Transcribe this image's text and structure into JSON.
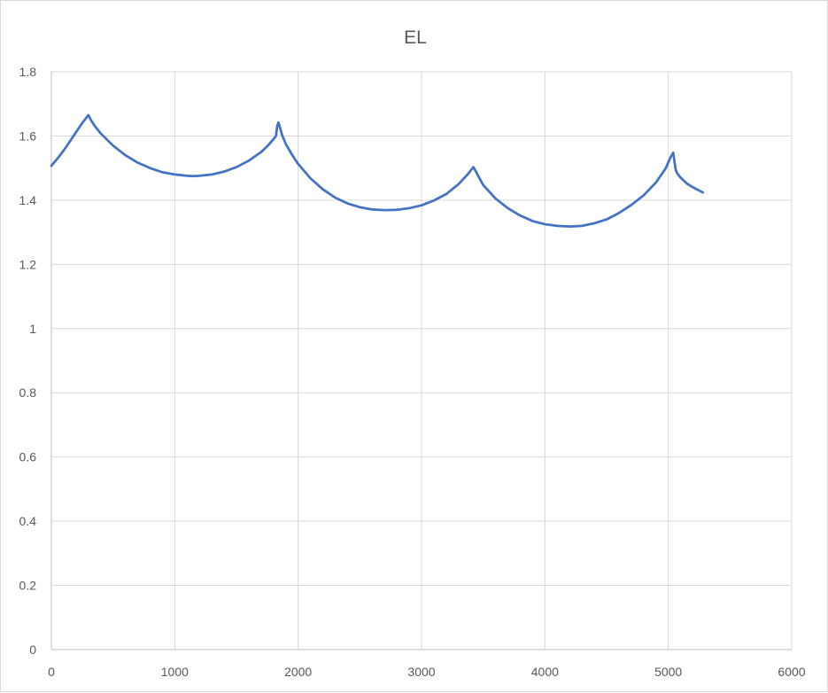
{
  "chart_data": {
    "type": "line",
    "title": "EL",
    "xlabel": "",
    "ylabel": "",
    "xlim": [
      0,
      6000
    ],
    "ylim": [
      0,
      1.8
    ],
    "x_ticks": [
      "0",
      "1000",
      "2000",
      "3000",
      "4000",
      "5000",
      "6000"
    ],
    "y_ticks": [
      "0",
      "0.2",
      "0.4",
      "0.6",
      "0.8",
      "1",
      "1.2",
      "1.4",
      "1.6",
      "1.8"
    ],
    "grid": true,
    "legend": "none",
    "series": [
      {
        "color": "#4472c4",
        "x": [
          0,
          50,
          100,
          150,
          200,
          250,
          300,
          320,
          350,
          400,
          500,
          600,
          700,
          800,
          900,
          1000,
          1100,
          1150,
          1200,
          1300,
          1400,
          1500,
          1600,
          1700,
          1750,
          1800,
          1820,
          1830,
          1840,
          1850,
          1870,
          1900,
          1950,
          2000,
          2100,
          2200,
          2300,
          2400,
          2500,
          2600,
          2700,
          2800,
          2900,
          3000,
          3100,
          3200,
          3300,
          3380,
          3420,
          3440,
          3460,
          3500,
          3600,
          3700,
          3800,
          3900,
          4000,
          4100,
          4200,
          4300,
          4400,
          4500,
          4600,
          4700,
          4800,
          4900,
          4980,
          5020,
          5040,
          5050,
          5060,
          5070,
          5100,
          5150,
          5200,
          5280
        ],
        "y": [
          1.507,
          1.53,
          1.555,
          1.583,
          1.612,
          1.64,
          1.665,
          1.65,
          1.632,
          1.608,
          1.57,
          1.54,
          1.517,
          1.5,
          1.487,
          1.48,
          1.476,
          1.475,
          1.476,
          1.48,
          1.489,
          1.503,
          1.523,
          1.55,
          1.568,
          1.59,
          1.6,
          1.63,
          1.642,
          1.63,
          1.603,
          1.575,
          1.542,
          1.513,
          1.468,
          1.434,
          1.408,
          1.39,
          1.378,
          1.371,
          1.369,
          1.37,
          1.375,
          1.384,
          1.399,
          1.419,
          1.45,
          1.483,
          1.503,
          1.49,
          1.475,
          1.447,
          1.405,
          1.375,
          1.352,
          1.335,
          1.325,
          1.32,
          1.318,
          1.32,
          1.328,
          1.34,
          1.36,
          1.385,
          1.415,
          1.455,
          1.5,
          1.535,
          1.548,
          1.52,
          1.495,
          1.485,
          1.47,
          1.452,
          1.44,
          1.424
        ]
      }
    ]
  }
}
